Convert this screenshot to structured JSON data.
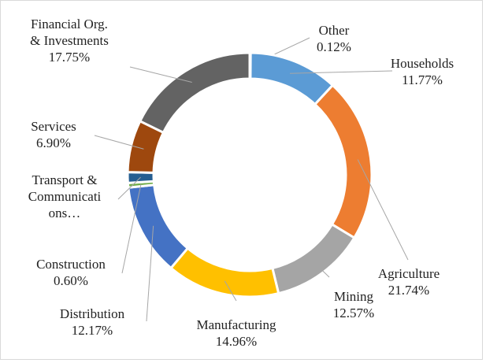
{
  "chart_data": {
    "type": "doughnut",
    "categories": [
      "Other",
      "Households",
      "Agriculture",
      "Mining",
      "Manufacturing",
      "Distribution",
      "Construction",
      "Transport &\nCommunicati\nons…",
      "Services",
      "Financial Org.\n& Investments"
    ],
    "values": [
      0.12,
      11.77,
      21.74,
      12.57,
      14.96,
      12.17,
      0.6,
      1.42,
      6.9,
      17.75
    ],
    "value_labels": [
      "0.12%",
      "11.77%",
      "21.74%",
      "12.57%",
      "14.96%",
      "12.17%",
      "0.60%",
      null,
      "6.90%",
      "17.75%"
    ],
    "colors": [
      "#9dc3e6",
      "#5b9bd5",
      "#ed7d31",
      "#a5a5a5",
      "#ffc000",
      "#4472c4",
      "#70ad47",
      "#255e91",
      "#9e480e",
      "#636363"
    ]
  }
}
